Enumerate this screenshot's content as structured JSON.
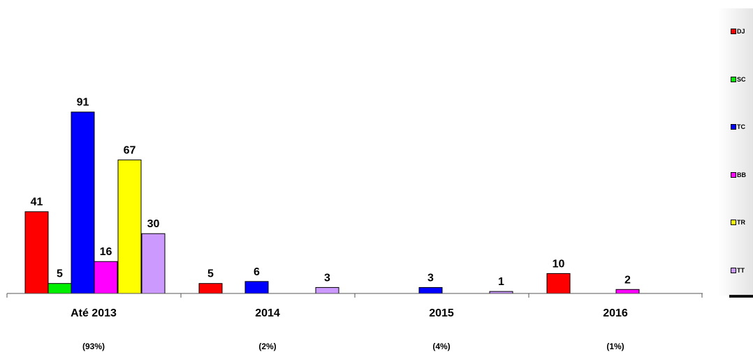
{
  "chart_data": {
    "type": "bar",
    "categories": [
      "Até 2013",
      "2014",
      "2015",
      "2016"
    ],
    "category_sublabels": [
      "(93%)",
      "(2%)",
      "(4%)",
      "(1%)"
    ],
    "series": [
      {
        "name": "DJ",
        "color": "#ff0000",
        "values": [
          41,
          5,
          null,
          10
        ]
      },
      {
        "name": "SC",
        "color": "#00ee00",
        "values": [
          5,
          null,
          null,
          null
        ]
      },
      {
        "name": "TC",
        "color": "#0000ff",
        "values": [
          91,
          6,
          3,
          null
        ]
      },
      {
        "name": "BB",
        "color": "#ff00ff",
        "values": [
          16,
          null,
          null,
          2
        ]
      },
      {
        "name": "TR",
        "color": "#ffff00",
        "values": [
          67,
          null,
          null,
          null
        ]
      },
      {
        "name": "TT",
        "color": "#cc99ff",
        "values": [
          30,
          3,
          1,
          null
        ]
      }
    ],
    "ylim": [
      0,
      100
    ],
    "legend_position": "right",
    "grid": false
  }
}
